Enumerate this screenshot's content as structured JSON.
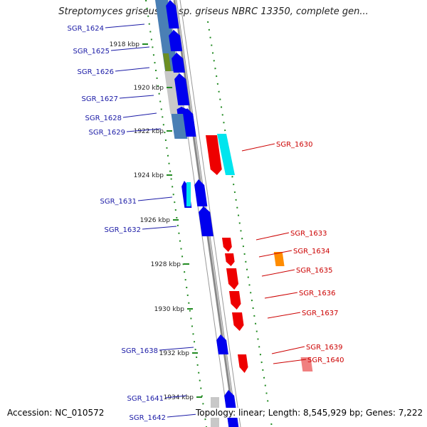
{
  "title": "Streptomyces griseus subsp. griseus NBRC 13350, complete gen...",
  "accession": "Accession: NC_010572",
  "stats": "Topology: linear; Length: 8,545,929 bp; Genes: 7,222",
  "colors": {
    "forward_gene": "#0000ee",
    "reverse_gene": "#ee0000",
    "left_label": "#1a1aa6",
    "right_label": "#cc0000",
    "ruler_tick": "#228b22",
    "backbone": "#888888"
  },
  "ruler_ticks": [
    "1918 kbp",
    "1920 kbp",
    "1922 kbp",
    "1924 kbp",
    "1926 kbp",
    "1928 kbp",
    "1930 kbp",
    "1932 kbp",
    "1934 kbp"
  ],
  "left_genes": [
    "SGR_1624",
    "SGR_1625",
    "SGR_1626",
    "SGR_1627",
    "SGR_1628",
    "SGR_1629",
    "SGR_1631",
    "SGR_1632",
    "SGR_1638",
    "SGR_1641",
    "SGR_1642"
  ],
  "right_genes": [
    "SGR_1630",
    "SGR_1633",
    "SGR_1634",
    "SGR_1635",
    "SGR_1636",
    "SGR_1637",
    "SGR_1639",
    "SGR_1640"
  ]
}
